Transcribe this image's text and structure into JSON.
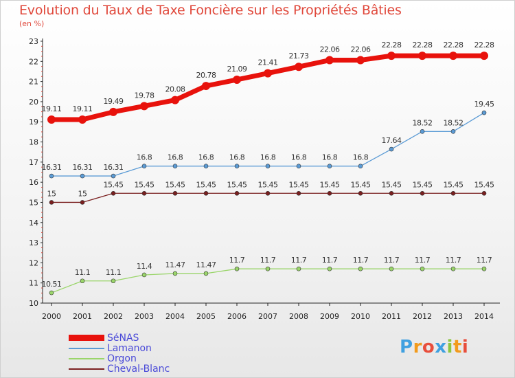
{
  "header": {
    "title": "Evolution du Taux de Taxe Foncière sur les Propriétés Bâties",
    "subtitle": "(en %)"
  },
  "logo": {
    "letters": [
      "P",
      "r",
      "o",
      "x",
      "i",
      "t",
      "i"
    ],
    "colors": [
      "#3fa0e0",
      "#f29b1d",
      "#e84e3c",
      "#3fa0e0",
      "#8cc63f",
      "#f29b1d",
      "#e84e3c"
    ]
  },
  "chart_data": {
    "type": "line",
    "x": [
      "2000",
      "2001",
      "2002",
      "2003",
      "2004",
      "2005",
      "2006",
      "2007",
      "2008",
      "2009",
      "2010",
      "2011",
      "2012",
      "2013",
      "2014"
    ],
    "ylim": [
      10,
      23
    ],
    "yticks": [
      "10",
      "11",
      "12",
      "13",
      "14",
      "15",
      "16",
      "17",
      "18",
      "19",
      "20",
      "21",
      "22",
      "23"
    ],
    "grid": false,
    "legend_position": "bottom-left",
    "series": [
      {
        "name": "SéNAS",
        "color": "#e8120c",
        "values": [
          19.11,
          19.11,
          19.49,
          19.78,
          20.08,
          20.78,
          21.09,
          21.41,
          21.73,
          22.06,
          22.06,
          22.28,
          22.28,
          22.28,
          22.28
        ],
        "labels": [
          "19.11",
          "19.11",
          "19.49",
          "19.78",
          "20.08",
          "20.78",
          "21.09",
          "21.41",
          "21.73",
          "22.06",
          "22.06",
          "22.28",
          "22.28",
          "22.28",
          "22.28"
        ]
      },
      {
        "name": "Lamanon",
        "color": "#5b9bd5",
        "values": [
          16.31,
          16.31,
          16.31,
          16.8,
          16.8,
          16.8,
          16.8,
          16.8,
          16.8,
          16.8,
          16.8,
          17.64,
          18.52,
          18.52,
          19.45
        ],
        "labels": [
          "16.31",
          "16.31",
          "16.31",
          "16.8",
          "16.8",
          "16.8",
          "16.8",
          "16.8",
          "16.8",
          "16.8",
          "16.8",
          "17.64",
          "18.52",
          "18.52",
          "19.45"
        ]
      },
      {
        "name": "Orgon",
        "color": "#9ad56a",
        "values": [
          10.51,
          11.1,
          11.1,
          11.4,
          11.47,
          11.47,
          11.7,
          11.7,
          11.7,
          11.7,
          11.7,
          11.7,
          11.7,
          11.7,
          11.7
        ],
        "labels": [
          "10.51",
          "11.1",
          "11.1",
          "11.4",
          "11.47",
          "11.47",
          "11.7",
          "11.7",
          "11.7",
          "11.7",
          "11.7",
          "11.7",
          "11.7",
          "11.7",
          "11.7"
        ]
      },
      {
        "name": "Cheval-Blanc",
        "color": "#7a1f1f",
        "values": [
          15,
          15,
          15.45,
          15.45,
          15.45,
          15.45,
          15.45,
          15.45,
          15.45,
          15.45,
          15.45,
          15.45,
          15.45,
          15.45,
          15.45
        ],
        "labels": [
          "15",
          "15",
          "15.45",
          "15.45",
          "15.45",
          "15.45",
          "15.45",
          "15.45",
          "15.45",
          "15.45",
          "15.45",
          "15.45",
          "15.45",
          "15.45",
          "15.45"
        ]
      }
    ]
  }
}
